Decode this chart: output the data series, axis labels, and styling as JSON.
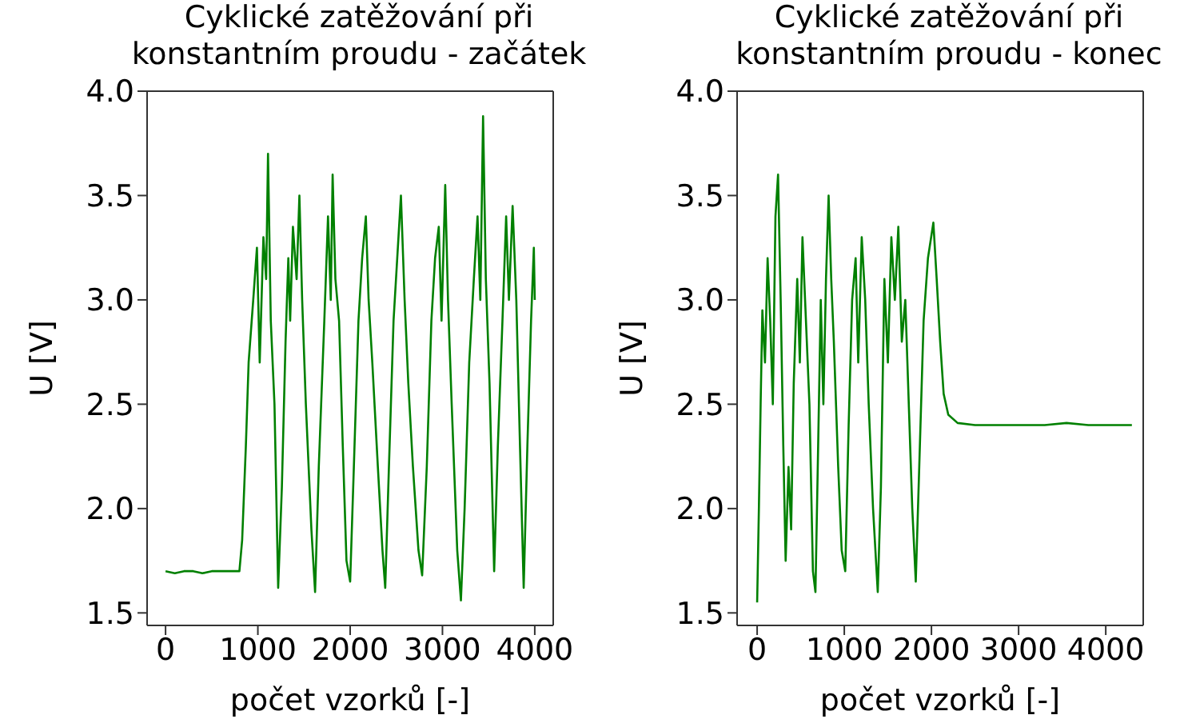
{
  "chart_data": [
    {
      "type": "line",
      "title": "Cyklické zatěžování při\nkonstantním proudu - začátek",
      "xlabel": "počet vzorků [-]",
      "ylabel": "U [V]",
      "xlim": [
        -200,
        4200
      ],
      "xticks": [
        0,
        1000,
        2000,
        3000,
        4000
      ],
      "ylim": [
        1.44,
        4.0
      ],
      "yticks": [
        1.5,
        {
          "value": 2,
          "label": "2.0"
        },
        2.5,
        {
          "value": 3,
          "label": "3.0"
        },
        3.5,
        {
          "value": 4,
          "label": "4.0"
        }
      ],
      "series": [
        {
          "color": "#008000",
          "x": [
            0,
            100,
            200,
            300,
            400,
            500,
            600,
            700,
            800,
            830,
            870,
            900,
            950,
            990,
            1020,
            1060,
            1090,
            1110,
            1140,
            1180,
            1220,
            1260,
            1300,
            1330,
            1350,
            1380,
            1420,
            1450,
            1480,
            1520,
            1580,
            1620,
            1660,
            1720,
            1760,
            1790,
            1810,
            1840,
            1880,
            1920,
            1960,
            2000,
            2040,
            2090,
            2130,
            2170,
            2200,
            2240,
            2300,
            2350,
            2380,
            2420,
            2470,
            2510,
            2550,
            2590,
            2630,
            2680,
            2740,
            2780,
            2830,
            2880,
            2920,
            2960,
            2990,
            3030,
            3060,
            3100,
            3160,
            3200,
            3240,
            3290,
            3340,
            3380,
            3410,
            3440,
            3470,
            3510,
            3560,
            3600,
            3650,
            3690,
            3720,
            3760,
            3800,
            3840,
            3880,
            3920,
            3960,
            3990,
            4000
          ],
          "values": [
            1.7,
            1.69,
            1.7,
            1.7,
            1.69,
            1.7,
            1.7,
            1.7,
            1.7,
            1.85,
            2.3,
            2.7,
            3.0,
            3.25,
            2.7,
            3.3,
            3.1,
            3.7,
            2.9,
            2.5,
            1.62,
            2.1,
            2.8,
            3.2,
            2.9,
            3.35,
            3.1,
            3.5,
            3.0,
            2.5,
            1.9,
            1.6,
            2.2,
            2.9,
            3.4,
            3.0,
            3.6,
            3.1,
            2.9,
            2.3,
            1.75,
            1.65,
            2.2,
            2.9,
            3.2,
            3.4,
            3.0,
            2.7,
            2.2,
            1.8,
            1.62,
            2.2,
            2.9,
            3.2,
            3.5,
            3.0,
            2.6,
            2.2,
            1.8,
            1.68,
            2.2,
            2.9,
            3.2,
            3.35,
            2.9,
            3.55,
            3.0,
            2.5,
            1.8,
            1.56,
            2.0,
            2.7,
            3.1,
            3.4,
            3.0,
            3.88,
            3.1,
            2.6,
            1.7,
            2.3,
            2.9,
            3.4,
            3.0,
            3.45,
            3.0,
            2.3,
            1.62,
            2.3,
            2.9,
            3.25,
            3.0
          ]
        }
      ]
    },
    {
      "type": "line",
      "title": "Cyklické zatěžování při\nkonstantním proudu - konec",
      "xlabel": "počet vzorků [-]",
      "ylabel": "U [V]",
      "xlim": [
        -230,
        4430
      ],
      "xticks": [
        0,
        1000,
        2000,
        3000,
        4000
      ],
      "ylim": [
        1.44,
        4.0
      ],
      "yticks": [
        1.5,
        {
          "value": 2,
          "label": "2.0"
        },
        2.5,
        {
          "value": 3,
          "label": "3.0"
        },
        3.5,
        {
          "value": 4,
          "label": "4.0"
        }
      ],
      "series": [
        {
          "color": "#008000",
          "x": [
            0,
            20,
            40,
            60,
            90,
            120,
            150,
            180,
            210,
            240,
            270,
            300,
            327,
            360,
            390,
            420,
            460,
            490,
            520,
            550,
            600,
            640,
            669,
            700,
            730,
            760,
            790,
            820,
            850,
            880,
            930,
            970,
            1011,
            1050,
            1090,
            1130,
            1160,
            1200,
            1240,
            1280,
            1330,
            1384,
            1420,
            1460,
            1500,
            1540,
            1580,
            1620,
            1660,
            1700,
            1740,
            1780,
            1820,
            1860,
            1910,
            1960,
            2022,
            2060,
            2100,
            2140,
            2193,
            2300,
            2500,
            2800,
            3000,
            3300,
            3550,
            3800,
            4100,
            4300
          ],
          "values": [
            1.55,
            2.0,
            2.5,
            2.95,
            2.7,
            3.2,
            2.9,
            2.5,
            3.4,
            3.6,
            3.0,
            2.3,
            1.75,
            2.2,
            1.9,
            2.6,
            3.1,
            2.7,
            3.3,
            3.0,
            2.5,
            1.7,
            1.6,
            2.3,
            3.0,
            2.5,
            3.1,
            3.5,
            3.1,
            2.8,
            2.2,
            1.8,
            1.7,
            2.4,
            3.0,
            3.2,
            2.7,
            3.3,
            3.0,
            2.5,
            2.0,
            1.6,
            2.1,
            3.1,
            2.7,
            3.3,
            3.0,
            3.35,
            2.8,
            3.0,
            2.5,
            2.0,
            1.65,
            2.2,
            2.9,
            3.2,
            3.37,
            3.1,
            2.8,
            2.55,
            2.45,
            2.41,
            2.4,
            2.4,
            2.4,
            2.4,
            2.41,
            2.4,
            2.4,
            2.4
          ]
        }
      ]
    }
  ]
}
